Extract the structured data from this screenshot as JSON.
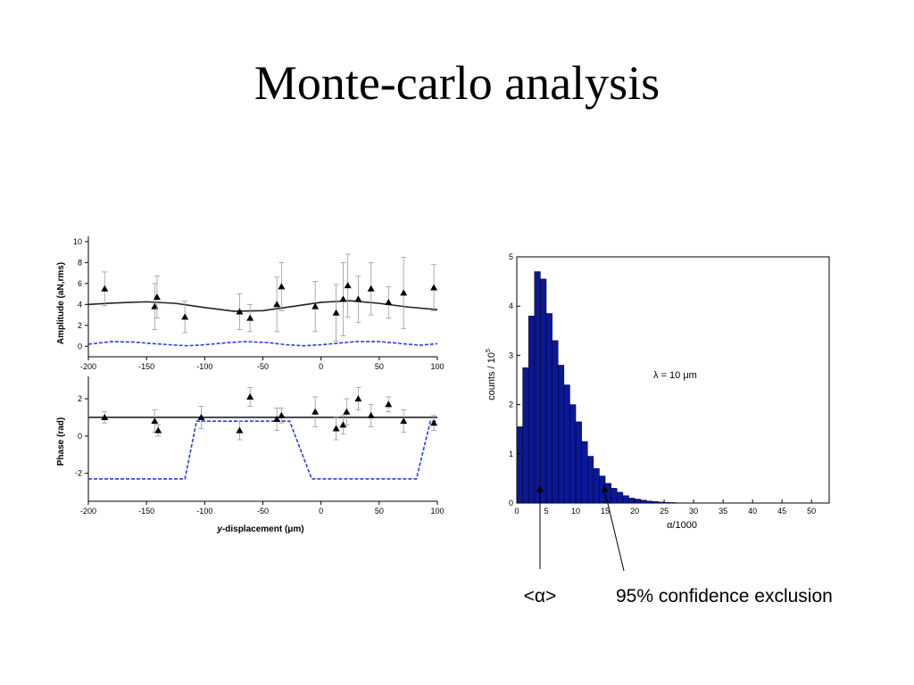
{
  "slide": {
    "title": "Monte-carlo analysis"
  },
  "chart_data": [
    {
      "type": "scatter",
      "ylabel": "Amplitude (aN,rms)",
      "xlim": [
        -200,
        100
      ],
      "ylim": [
        -1,
        10.5
      ],
      "xticks": [
        "-200",
        "-150",
        "-100",
        "-50",
        "0",
        "50",
        "100"
      ],
      "yticks": [
        "0",
        "2",
        "4",
        "6",
        "8",
        "10"
      ],
      "points": [
        {
          "x": -186,
          "y": 5.5,
          "err": 1.6
        },
        {
          "x": -143,
          "y": 3.8,
          "err": 2.2
        },
        {
          "x": -141,
          "y": 4.7,
          "err": 2.0
        },
        {
          "x": -117,
          "y": 2.8,
          "err": 1.5
        },
        {
          "x": -70,
          "y": 3.3,
          "err": 1.7
        },
        {
          "x": -61,
          "y": 2.7,
          "err": 1.3
        },
        {
          "x": -38,
          "y": 4.0,
          "err": 2.6
        },
        {
          "x": -34,
          "y": 5.7,
          "err": 2.3
        },
        {
          "x": -5,
          "y": 3.8,
          "err": 2.4
        },
        {
          "x": 13,
          "y": 3.2,
          "err": 2.7
        },
        {
          "x": 19,
          "y": 4.5,
          "err": 3.5
        },
        {
          "x": 23,
          "y": 5.8,
          "err": 3.0
        },
        {
          "x": 32,
          "y": 4.5,
          "err": 2.2
        },
        {
          "x": 43,
          "y": 5.5,
          "err": 2.5
        },
        {
          "x": 58,
          "y": 4.2,
          "err": 1.5
        },
        {
          "x": 71,
          "y": 5.1,
          "err": 3.4
        },
        {
          "x": 97,
          "y": 5.6,
          "err": 2.2
        }
      ],
      "fit_line": [
        [
          -200,
          4.0
        ],
        [
          -175,
          4.15
        ],
        [
          -150,
          4.25
        ],
        [
          -125,
          4.1
        ],
        [
          -100,
          3.7
        ],
        [
          -75,
          3.35
        ],
        [
          -50,
          3.4
        ],
        [
          -25,
          3.8
        ],
        [
          0,
          4.2
        ],
        [
          25,
          4.35
        ],
        [
          50,
          4.1
        ],
        [
          75,
          3.75
        ],
        [
          100,
          3.5
        ]
      ],
      "dashed_line": [
        [
          -200,
          0.2
        ],
        [
          -180,
          0.45
        ],
        [
          -160,
          0.4
        ],
        [
          -150,
          0.3
        ],
        [
          -130,
          0.15
        ],
        [
          -115,
          0.05
        ],
        [
          -100,
          0.15
        ],
        [
          -80,
          0.35
        ],
        [
          -65,
          0.45
        ],
        [
          -45,
          0.35
        ],
        [
          -30,
          0.15
        ],
        [
          -15,
          0.05
        ],
        [
          0,
          0.15
        ],
        [
          15,
          0.3
        ],
        [
          30,
          0.45
        ],
        [
          50,
          0.45
        ],
        [
          70,
          0.25
        ],
        [
          85,
          0.1
        ],
        [
          100,
          0.25
        ]
      ]
    },
    {
      "type": "scatter",
      "xlabel_prefix": "y",
      "xlabel": "-displacement (μm)",
      "ylabel": "Phase (rad)",
      "xlim": [
        -200,
        100
      ],
      "ylim": [
        -3.5,
        3.2
      ],
      "xticks": [
        "-200",
        "-150",
        "-100",
        "-50",
        "0",
        "50",
        "100"
      ],
      "yticks": [
        "-2",
        "0",
        "2"
      ],
      "points": [
        {
          "x": -186,
          "y": 1.0,
          "err": 0.3
        },
        {
          "x": -143,
          "y": 0.8,
          "err": 0.6
        },
        {
          "x": -140,
          "y": 0.3,
          "err": 0.3
        },
        {
          "x": -103,
          "y": 1.0,
          "err": 0.6
        },
        {
          "x": -70,
          "y": 0.3,
          "err": 0.5
        },
        {
          "x": -61,
          "y": 2.1,
          "err": 0.5
        },
        {
          "x": -38,
          "y": 0.9,
          "err": 0.6
        },
        {
          "x": -34,
          "y": 1.1,
          "err": 0.4
        },
        {
          "x": -5,
          "y": 1.3,
          "err": 0.8
        },
        {
          "x": 13,
          "y": 0.4,
          "err": 0.6
        },
        {
          "x": 19,
          "y": 0.6,
          "err": 0.5
        },
        {
          "x": 22,
          "y": 1.3,
          "err": 0.7
        },
        {
          "x": 32,
          "y": 2.0,
          "err": 0.6
        },
        {
          "x": 43,
          "y": 1.1,
          "err": 0.6
        },
        {
          "x": 58,
          "y": 1.7,
          "err": 0.4
        },
        {
          "x": 71,
          "y": 0.8,
          "err": 0.6
        },
        {
          "x": 97,
          "y": 0.7,
          "err": 0.4
        }
      ],
      "fit_line": [
        [
          -200,
          1.0
        ],
        [
          100,
          1.0
        ]
      ],
      "dashed_line": [
        [
          -200,
          -2.3
        ],
        [
          -117,
          -2.3
        ],
        [
          -107,
          0.8
        ],
        [
          -27,
          0.8
        ],
        [
          -8,
          -2.3
        ],
        [
          82,
          -2.3
        ],
        [
          94,
          0.8
        ],
        [
          100,
          0.8
        ]
      ]
    },
    {
      "type": "bar",
      "xlabel": "α/1000",
      "ylabel_base": "counts / 10",
      "ylabel_exp": "5",
      "annotation": "λ = 10 μm",
      "xlim": [
        0,
        53
      ],
      "ylim": [
        0,
        5
      ],
      "xticks": [
        "0",
        "5",
        "10",
        "15",
        "20",
        "25",
        "30",
        "35",
        "40",
        "45",
        "50"
      ],
      "yticks": [
        "0",
        "1",
        "2",
        "3",
        "4",
        "5"
      ],
      "bin_width": 1,
      "values": [
        1.55,
        2.75,
        3.8,
        4.7,
        4.55,
        3.85,
        3.3,
        2.8,
        2.4,
        2.0,
        1.65,
        1.25,
        0.95,
        0.7,
        0.55,
        0.4,
        0.3,
        0.22,
        0.15,
        0.1,
        0.08,
        0.06,
        0.04,
        0.03,
        0.02,
        0.015,
        0.01,
        0.005,
        0.003,
        0.002,
        0.001
      ]
    }
  ],
  "annotations": {
    "mean_alpha": "<α>",
    "exclusion": "95% confidence exclusion"
  },
  "colors": {
    "bar_fill": "#0a1896",
    "dashed": "#2a3fe0",
    "errbar": "#999999"
  }
}
